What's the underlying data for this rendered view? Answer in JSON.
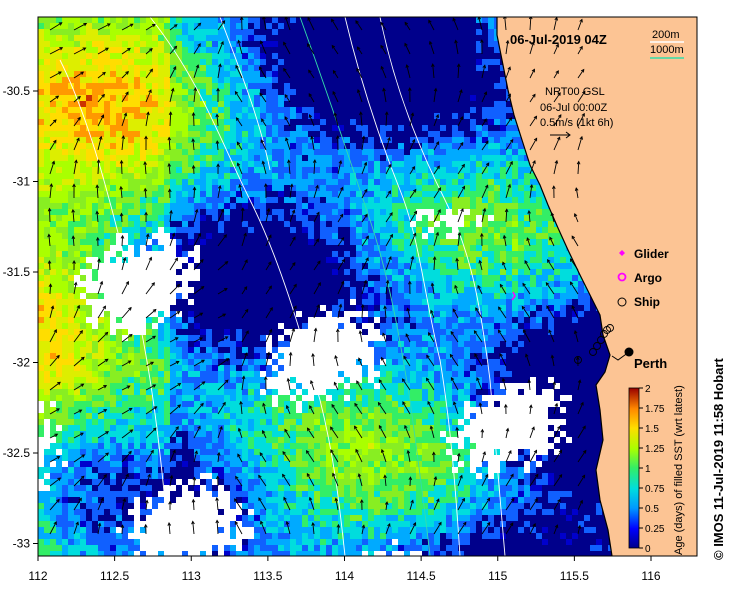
{
  "map": {
    "title": "06-Jul-2019 04Z",
    "credit": "© IMOS 11-Jul-2019 11:58 Hobart",
    "place_label": "Perth",
    "contours": {
      "label_200": "200m",
      "label_1000": "1000m",
      "color_200": "#ffffff",
      "color_1000": "#33ddaa"
    },
    "currents": {
      "line1": "NRT00 GSL",
      "line2": "06-Jul 00:00Z",
      "line3": "0.5m/s (1kt 6h)"
    },
    "legend": [
      {
        "label": "Glider",
        "symbol": "diamond",
        "color": "#ff00ff"
      },
      {
        "label": "Argo",
        "symbol": "ring",
        "color": "#ff00ff"
      },
      {
        "label": "Ship",
        "symbol": "circle",
        "color": "#000000"
      }
    ],
    "x_ticks": [
      "112",
      "112.5",
      "113",
      "113.5",
      "114",
      "114.5",
      "115",
      "115.5",
      "116"
    ],
    "y_ticks": [
      "-30.5",
      "-31",
      "-31.5",
      "-32",
      "-32.5",
      "-33"
    ],
    "colorbar": {
      "label": "Age (days) of filled SST (wrt latest)",
      "ticks": [
        "0",
        "0.25",
        "0.5",
        "0.75",
        "1",
        "1.25",
        "1.5",
        "1.75",
        "2"
      ],
      "range": [
        0,
        2
      ]
    },
    "colors": {
      "land": "#fcc494",
      "ocean_recent": "#00008b",
      "no_data": "#ffffff"
    }
  }
}
